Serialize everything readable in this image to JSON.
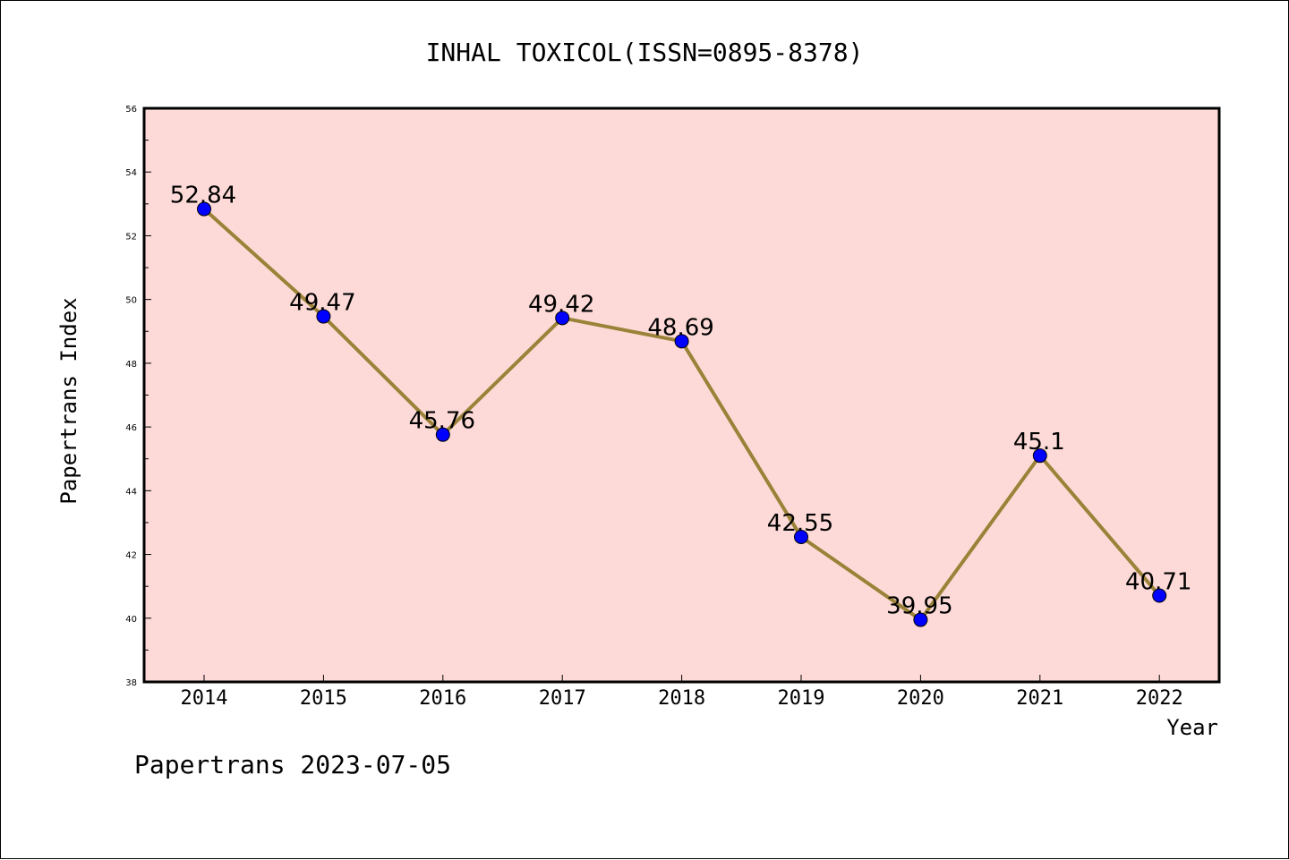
{
  "chart_data": {
    "type": "line",
    "title": "INHAL TOXICOL(ISSN=0895-8378)",
    "xlabel": "Year",
    "ylabel": "Papertrans Index",
    "categories": [
      "2014",
      "2015",
      "2016",
      "2017",
      "2018",
      "2019",
      "2020",
      "2021",
      "2022"
    ],
    "series": [
      {
        "values": [
          52.84,
          49.47,
          45.76,
          49.42,
          48.69,
          42.55,
          39.95,
          45.1,
          40.71
        ],
        "labels": [
          "52.84",
          "49.47",
          "45.76",
          "49.42",
          "48.69",
          "42.55",
          "39.95",
          "45.1",
          "40.71"
        ]
      }
    ],
    "ylim": [
      38,
      56
    ],
    "yticks": [
      "38",
      "40",
      "42",
      "44",
      "46",
      "48",
      "50",
      "52",
      "54",
      "56"
    ],
    "grid": false,
    "colors": {
      "plot_background": "#fddad7",
      "line": "#9a8238",
      "marker": "#0000ff"
    },
    "footer": "Papertrans 2023-07-05"
  }
}
